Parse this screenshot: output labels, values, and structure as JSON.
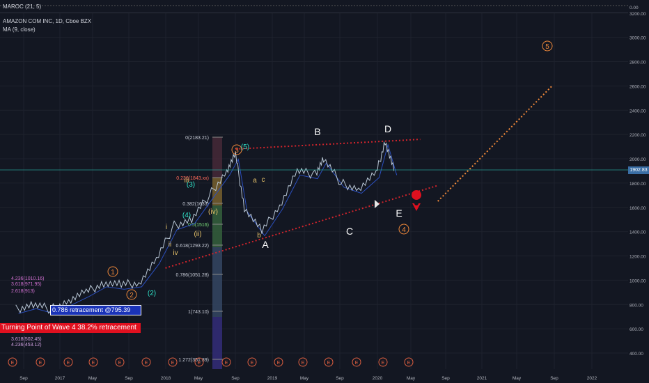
{
  "header": {
    "indicator_label": "MAROC (21, 5)",
    "symbol_line": "AMAZON COM INC, 1D, Cboe BZX",
    "ma_label": "MA (9, close)"
  },
  "price_axis": {
    "labels": [
      "0.00",
      "3200.00",
      "3000.00",
      "2800.00",
      "2600.00",
      "2400.00",
      "2200.00",
      "2000.00",
      "1800.00",
      "1600.00",
      "1400.00",
      "1200.00",
      "1000.00",
      "800.00",
      "600.00",
      "400.00"
    ],
    "current_price": "1902.83"
  },
  "time_axis": {
    "labels": [
      "Sep",
      "2017",
      "May",
      "Sep",
      "2018",
      "May",
      "Sep",
      "2019",
      "May",
      "Sep",
      "2020",
      "May",
      "Sep",
      "2021",
      "May",
      "Sep",
      "2022"
    ]
  },
  "annotations": {
    "blue_box": "0.786 retracement @795.39",
    "red_box": "Turning Point of Wave 4 38.2% retracement",
    "fib_labels": [
      "0(2183.21)",
      "0.236(1843.xx)",
      "0.382(1633)",
      "0.5(1516)",
      "0.618(1293.22)",
      "0.786(1051.28)",
      "1(743.10)",
      "1.272(351.39)"
    ],
    "fib_left_labels": [
      "4.236(1010.16)",
      "3.618(971.95)",
      "2.618(913)",
      "3.618(502.45)",
      "4.236(453.12)"
    ],
    "wave_labels": [
      "A",
      "B",
      "C",
      "D",
      "E",
      "1",
      "2",
      "3",
      "4",
      "5",
      "(3)",
      "(4)",
      "(5)",
      "(2)",
      "(ii)",
      "(iv)",
      "a",
      "b",
      "c",
      "iii",
      "iv",
      "i",
      "ii"
    ]
  },
  "chart_data": {
    "type": "line",
    "title": "AMAZON COM INC, 1D, Cboe BZX",
    "xlabel": "",
    "ylabel": "",
    "ylim": [
      300,
      3300
    ],
    "grid": true,
    "legend_placement": "top-left",
    "colors": {
      "price": "#b9c7d6",
      "ma": "#2b4fbf",
      "target": "#f0893a",
      "triangle": "#d2242c",
      "current": "#26a69a"
    },
    "x": [
      "2016-08",
      "2016-10",
      "2016-12",
      "2017-02",
      "2017-04",
      "2017-06",
      "2017-08",
      "2017-10",
      "2017-12",
      "2018-02",
      "2018-04",
      "2018-06",
      "2018-08",
      "2018-09",
      "2018-10",
      "2018-12",
      "2019-02",
      "2019-04",
      "2019-06",
      "2019-07",
      "2019-09",
      "2019-11",
      "2020-01",
      "2020-02",
      "2020-03"
    ],
    "series": [
      {
        "values": [
          760,
          800,
          760,
          830,
          900,
          980,
          960,
          980,
          1170,
          1450,
          1500,
          1700,
          1900,
          2030,
          1600,
          1400,
          1620,
          1900,
          1870,
          2000,
          1800,
          1750,
          1880,
          2150,
          1900
        ]
      }
    ],
    "projection": {
      "x": [
        "2020-08",
        "2021-09"
      ],
      "values": [
        1650,
        2600
      ]
    },
    "triangle": {
      "upper": {
        "x": [
          "2018-09",
          "2020-06"
        ],
        "values": [
          2080,
          2160
        ]
      },
      "lower": {
        "x": [
          "2018-01",
          "2020-08"
        ],
        "values": [
          1100,
          1780
        ]
      }
    }
  }
}
